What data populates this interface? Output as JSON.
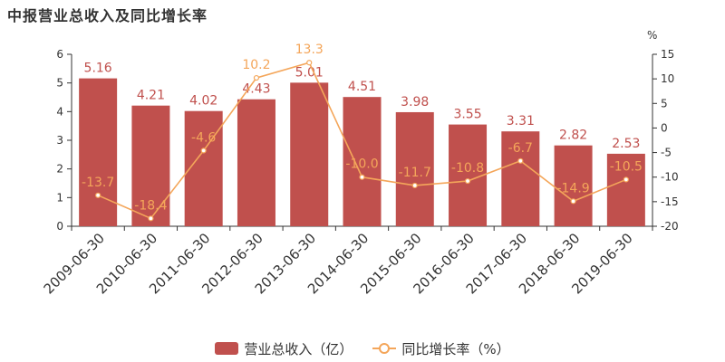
{
  "chart_data": {
    "type": "bar",
    "title": "中报营业总收入及同比增长率",
    "categories": [
      "2009-06-30",
      "2010-06-30",
      "2011-06-30",
      "2012-06-30",
      "2013-06-30",
      "2014-06-30",
      "2015-06-30",
      "2016-06-30",
      "2017-06-30",
      "2018-06-30",
      "2019-06-30"
    ],
    "series": [
      {
        "name": "营业总收入（亿）",
        "kind": "bar",
        "axis": "left",
        "color": "#c0504d",
        "values": [
          5.16,
          4.21,
          4.02,
          4.43,
          5.01,
          4.51,
          3.98,
          3.55,
          3.31,
          2.82,
          2.53
        ]
      },
      {
        "name": "同比增长率（%）",
        "kind": "line",
        "axis": "right",
        "color": "#f4a65a",
        "values": [
          -13.7,
          -18.4,
          -4.6,
          10.2,
          13.3,
          -10.0,
          -11.7,
          -10.8,
          -6.7,
          -14.9,
          -10.5
        ]
      }
    ],
    "y_left": {
      "min": 0,
      "max": 6,
      "ticks": [
        0,
        1,
        2,
        3,
        4,
        5,
        6
      ]
    },
    "y_right": {
      "min": -20,
      "max": 15,
      "ticks": [
        -20,
        -15,
        -10,
        -5,
        0,
        5,
        10,
        15
      ],
      "unit": "%"
    },
    "legend_position": "bottom",
    "grid": false
  }
}
